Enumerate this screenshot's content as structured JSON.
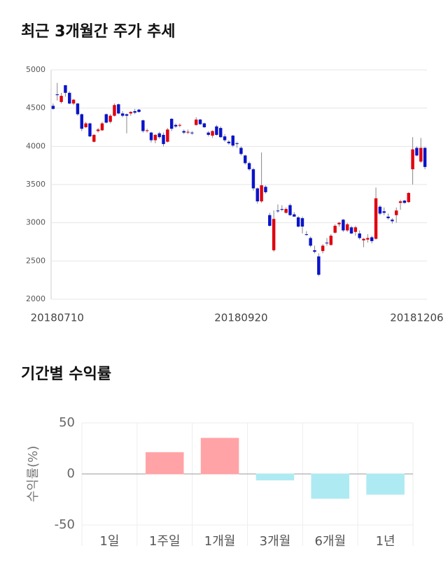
{
  "chart_data": [
    {
      "type": "candlestick",
      "title": "최근 3개월간 주가 추세",
      "categories": [
        null,
        "20180710",
        null,
        null,
        null,
        null,
        null,
        null,
        null,
        null,
        null,
        null,
        null,
        null,
        null,
        null,
        null,
        null,
        null,
        null,
        null,
        null,
        null,
        null,
        null,
        null,
        null,
        null,
        null,
        null,
        null,
        null,
        null,
        null,
        null,
        null,
        null,
        null,
        null,
        null,
        null,
        null,
        null,
        null,
        null,
        null,
        "20180920",
        null,
        null,
        null,
        null,
        null,
        null,
        null,
        null,
        null,
        null,
        null,
        null,
        null,
        null,
        null,
        null,
        null,
        null,
        null,
        null,
        null,
        null,
        null,
        null,
        null,
        null,
        null,
        null,
        null,
        null,
        null,
        null,
        null,
        null,
        null,
        null,
        null,
        null,
        null,
        null,
        null,
        null,
        "20181206",
        null,
        null
      ],
      "open": [
        4530,
        4680,
        4580,
        4800,
        4700,
        4560,
        4560,
        4420,
        4250,
        4300,
        4060,
        4200,
        4210,
        4420,
        4320,
        4400,
        4550,
        4430,
        4420,
        4430,
        4460,
        4480,
        4340,
        4200,
        4180,
        4080,
        4170,
        4150,
        4060,
        4360,
        4280,
        4270,
        4200,
        4180,
        4180,
        4280,
        4350,
        4300,
        4180,
        4140,
        4260,
        4240,
        4130,
        4060,
        4140,
        4040,
        3980,
        3880,
        3780,
        3700,
        3450,
        3280,
        3470,
        3100,
        2640,
        3160,
        3180,
        3130,
        3230,
        3110,
        3070,
        3060,
        2850,
        2800,
        2640,
        2560,
        2630,
        2740,
        2710,
        2870,
        2980,
        3040,
        2900,
        2940,
        2880,
        2860,
        2770,
        2780,
        2810,
        2790,
        3210,
        3150,
        3080,
        3040,
        3100,
        3260,
        3290,
        3270,
        3700,
        3980,
        3800,
        3980
      ],
      "high": [
        4560,
        4830,
        4700,
        4800,
        4720,
        4620,
        4570,
        4430,
        4320,
        4310,
        4160,
        4240,
        4320,
        4430,
        4420,
        4560,
        4560,
        4460,
        4430,
        4460,
        4490,
        4490,
        4350,
        4230,
        4190,
        4160,
        4190,
        4180,
        4240,
        4370,
        4300,
        4300,
        4220,
        4220,
        4200,
        4380,
        4360,
        4310,
        4200,
        4210,
        4280,
        4260,
        4160,
        4080,
        4150,
        4060,
        4000,
        3890,
        3800,
        3720,
        3460,
        3920,
        3490,
        3130,
        3160,
        3240,
        3230,
        3200,
        3250,
        3140,
        3090,
        3080,
        2890,
        2820,
        2700,
        2600,
        2720,
        2800,
        2850,
        2980,
        3010,
        3050,
        3000,
        2960,
        2960,
        2900,
        2800,
        2850,
        2830,
        3460,
        3230,
        3200,
        3120,
        3060,
        3200,
        3300,
        3300,
        3400,
        4120,
        4000,
        4110,
        3990
      ],
      "low": [
        4480,
        4600,
        4560,
        4650,
        4550,
        4540,
        4400,
        4200,
        4240,
        4120,
        4050,
        4180,
        4200,
        4300,
        4300,
        4390,
        4420,
        4380,
        4170,
        4400,
        4420,
        4440,
        4180,
        4180,
        4050,
        4040,
        4100,
        4000,
        4050,
        4200,
        4240,
        4250,
        4160,
        4160,
        4150,
        4270,
        4280,
        4240,
        4130,
        4110,
        4140,
        4110,
        4060,
        4020,
        3990,
        3980,
        3880,
        3760,
        3680,
        3420,
        3250,
        3260,
        3380,
        2950,
        2620,
        3130,
        3150,
        3120,
        3090,
        3080,
        2940,
        2860,
        2830,
        2680,
        2600,
        2300,
        2600,
        2700,
        2700,
        2860,
        2950,
        2880,
        2880,
        2850,
        2830,
        2780,
        2680,
        2740,
        2730,
        2780,
        3100,
        3100,
        3040,
        2990,
        3000,
        3170,
        3250,
        3260,
        3500,
        3870,
        3780,
        3700
      ],
      "close": [
        4490,
        4670,
        4660,
        4700,
        4560,
        4610,
        4420,
        4230,
        4300,
        4130,
        4150,
        4220,
        4300,
        4310,
        4400,
        4540,
        4430,
        4400,
        4400,
        4450,
        4440,
        4450,
        4200,
        4210,
        4080,
        4150,
        4120,
        4030,
        4220,
        4230,
        4260,
        4280,
        4180,
        4190,
        4170,
        4350,
        4290,
        4250,
        4150,
        4200,
        4150,
        4120,
        4080,
        4040,
        4010,
        4030,
        3900,
        3780,
        3700,
        3450,
        3280,
        3490,
        3400,
        2960,
        3050,
        3150,
        3170,
        3180,
        3100,
        3080,
        2950,
        2950,
        2840,
        2700,
        2620,
        2320,
        2700,
        2730,
        2830,
        2960,
        3000,
        2900,
        2980,
        2860,
        2940,
        2800,
        2790,
        2800,
        2760,
        3320,
        3120,
        3130,
        3060,
        3020,
        3160,
        3280,
        3260,
        3390,
        3960,
        3880,
        3980,
        3730
      ],
      "up_color": "#e0000f",
      "down_color": "#0a14c8",
      "ylim": [
        2000,
        5000
      ],
      "yticks": [
        2000,
        2500,
        3000,
        3500,
        4000,
        4500,
        5000
      ],
      "grid": true
    },
    {
      "type": "bar",
      "title": "기간별 수익률",
      "ylabel": "수익률(%)",
      "categories": [
        "1일",
        "1주일",
        "1개월",
        "3개월",
        "6개월",
        "1년"
      ],
      "values": [
        0,
        21,
        35,
        -6,
        -24,
        -20
      ],
      "colors": [
        "#ffa3a6",
        "#ffa3a6",
        "#ffa3a6",
        "#aeeaf2",
        "#aeeaf2",
        "#aeeaf2"
      ],
      "ylim": [
        -50,
        50
      ],
      "yticks": [
        -50,
        0,
        50
      ],
      "grid": true
    }
  ]
}
